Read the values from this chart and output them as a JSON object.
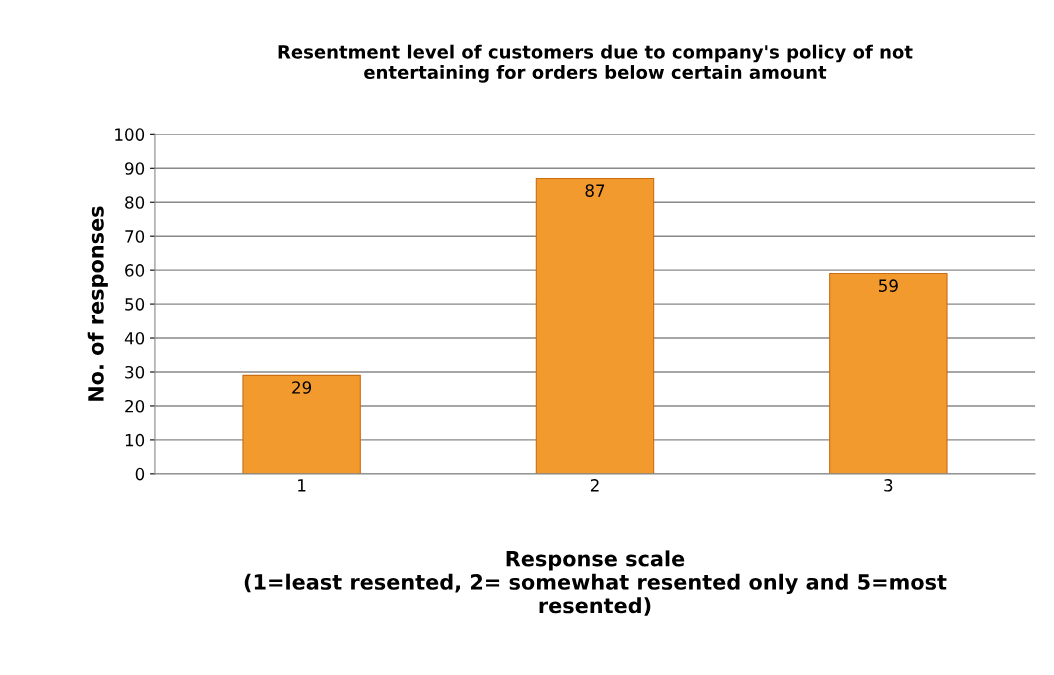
{
  "chart_data": {
    "type": "bar",
    "title": "Resentment level of customers due to company's policy of not\nentertaining for orders below certain amount",
    "xlabel": "Response scale\n(1=least resented, 2= somewhat resented only and 5=most\nresented)",
    "ylabel": "No. of responses",
    "categories": [
      "1",
      "2",
      "3"
    ],
    "values": [
      29,
      87,
      59
    ],
    "color": "#f39a2e",
    "ylim": [
      0,
      100
    ],
    "yticks": [
      0,
      10,
      20,
      30,
      40,
      50,
      60,
      70,
      80,
      90,
      100
    ],
    "grid": "y",
    "data_labels": true
  }
}
